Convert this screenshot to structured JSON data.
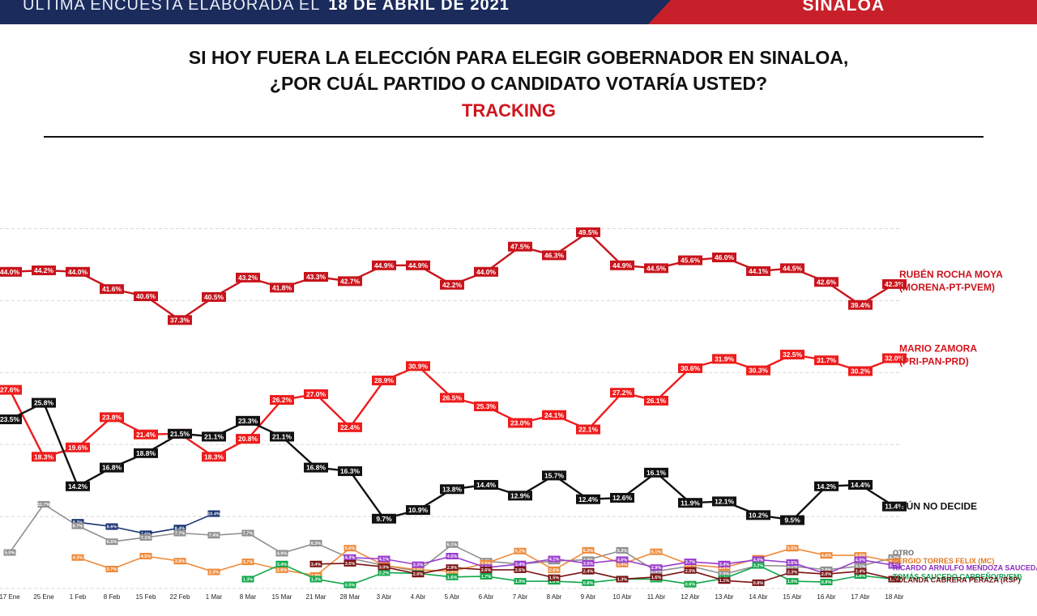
{
  "header": {
    "survey_note": "ÚLTIMA ENCUESTA ELABORADA EL",
    "survey_date": "18 DE ABRIL DE 2021",
    "region": "SINALOA",
    "colors": {
      "navy": "#1a2b5c",
      "red": "#c8202a"
    }
  },
  "question": {
    "line1": "SI HOY FUERA LA ELECCIÓN PARA ELEGIR GOBERNADOR EN SINALOA,",
    "line2": "¿POR CUÁL PARTIDO O CANDIDATO VOTARÍA USTED?",
    "subtitle": "TRACKING"
  },
  "chart_data": {
    "type": "line",
    "title": "TRACKING",
    "categories": [
      "17 Ene",
      "25 Ene",
      "1 Feb",
      "8 Feb",
      "15 Feb",
      "22 Feb",
      "1 Mar",
      "8 Mar",
      "15 Mar",
      "21 Mar",
      "28 Mar",
      "3 Abr",
      "4 Abr",
      "5 Abr",
      "6 Abr",
      "7 Abr",
      "8 Abr",
      "9 Abr",
      "10 Abr",
      "11 Abr",
      "12 Abr",
      "13 Abr",
      "14 Abr",
      "15 Abr",
      "16 Abr",
      "17 Abr",
      "18 Abr"
    ],
    "ylim": [
      0,
      55
    ],
    "grid": true,
    "legend": "right",
    "series": [
      {
        "name": "RUBÉN ROCHA MOYA",
        "name2": "(MORENA-PT-PVEM)",
        "color": "#c8141c",
        "label_color": "#c8141c",
        "style": "big",
        "values": [
          44.0,
          44.2,
          44.0,
          41.6,
          40.6,
          37.3,
          40.5,
          43.2,
          41.8,
          43.3,
          42.7,
          44.9,
          44.9,
          42.2,
          44.0,
          47.5,
          46.3,
          49.5,
          44.9,
          44.5,
          45.6,
          46.0,
          44.1,
          44.5,
          42.6,
          39.4,
          42.3
        ]
      },
      {
        "name": "MARIO ZAMORA",
        "name2": "(PRI-PAN-PRD)",
        "color": "#ee1c1c",
        "label_color": "#d6141c",
        "style": "big",
        "values": [
          27.6,
          18.3,
          19.6,
          23.8,
          21.4,
          21.5,
          18.3,
          20.8,
          26.2,
          27.0,
          22.4,
          28.9,
          30.9,
          26.5,
          25.3,
          23.0,
          24.1,
          22.1,
          27.2,
          26.1,
          30.6,
          31.9,
          30.3,
          32.5,
          31.7,
          30.2,
          32.0
        ]
      },
      {
        "name": "AÚN NO DECIDE",
        "name2": "",
        "color": "#111111",
        "label_color": "#111111",
        "style": "big",
        "values": [
          23.5,
          25.8,
          14.2,
          16.8,
          18.8,
          21.5,
          21.1,
          23.3,
          21.1,
          16.8,
          16.3,
          9.7,
          10.9,
          13.8,
          14.4,
          12.9,
          15.7,
          12.4,
          12.6,
          16.1,
          11.9,
          12.1,
          10.2,
          9.5,
          14.2,
          14.4,
          11.4
        ]
      },
      {
        "name": "",
        "name2": "",
        "color": "#163070",
        "label_color": "",
        "style": "small",
        "values": [
          null,
          null,
          9.2,
          8.6,
          7.6,
          8.4,
          10.4,
          null,
          null,
          null,
          null,
          null,
          null,
          null,
          null,
          null,
          null,
          null,
          null,
          null,
          null,
          null,
          null,
          null,
          null,
          null,
          null
        ]
      },
      {
        "name": "OTRO",
        "name2": "",
        "color": "#909090",
        "label_color": "#666666",
        "style": "small",
        "values": [
          5.0,
          11.7,
          8.7,
          6.5,
          7.1,
          7.7,
          7.4,
          7.7,
          4.9,
          6.3,
          4.2,
          3.2,
          2.4,
          6.1,
          3.8,
          3.4,
          3.8,
          4.0,
          5.3,
          2.4,
          3.1,
          2.0,
          3.2,
          3.1,
          2.6,
          3.1,
          4.3
        ]
      },
      {
        "name": "SERGIO TORRES FELIX (MC)",
        "name2": "",
        "color": "#ee8a3a",
        "label_color": "#e07820",
        "style": "small",
        "values": [
          null,
          null,
          4.3,
          2.7,
          4.5,
          3.8,
          2.3,
          3.7,
          2.6,
          1.8,
          5.6,
          3.2,
          2.6,
          2.4,
          3.5,
          5.2,
          2.6,
          5.3,
          3.4,
          5.1,
          3.3,
          2.9,
          4.2,
          5.6,
          4.6,
          4.6,
          3.7
        ]
      },
      {
        "name": "RICARDO ARNULFO MENDOZA SAUCEDA (PES)",
        "name2": "",
        "color": "#9a3ccc",
        "label_color": "#8a2cc0",
        "style": "small",
        "values": [
          null,
          null,
          null,
          null,
          null,
          null,
          null,
          null,
          null,
          null,
          4.3,
          4.1,
          3.3,
          4.5,
          2.9,
          3.4,
          4.1,
          3.5,
          4.0,
          2.9,
          3.7,
          3.4,
          4.0,
          3.6,
          2.0,
          4.0,
          3.2
        ]
      },
      {
        "name": "TOMÁS SAUCEDO CARREÑO(PVEM)",
        "name2": "",
        "color": "#10a84a",
        "label_color": "#10a050",
        "style": "small",
        "values": [
          null,
          null,
          null,
          null,
          null,
          null,
          null,
          1.3,
          3.4,
          1.3,
          0.5,
          2.2,
          2.1,
          1.6,
          1.7,
          1.0,
          1.0,
          0.8,
          1.3,
          1.3,
          0.6,
          1.4,
          3.2,
          1.0,
          0.9,
          1.8,
          1.3
        ]
      },
      {
        "name": "YOLANDA CABRERA PERAZA (RSP)",
        "name2": "",
        "color": "#7a1414",
        "label_color": "#6a1010",
        "style": "small",
        "values": [
          null,
          null,
          null,
          null,
          null,
          null,
          null,
          null,
          null,
          3.4,
          3.5,
          3.0,
          2.0,
          2.9,
          2.6,
          2.6,
          1.5,
          2.4,
          1.3,
          1.6,
          2.5,
          1.1,
          0.8,
          2.3,
          2.0,
          2.4,
          1.3
        ]
      }
    ]
  }
}
